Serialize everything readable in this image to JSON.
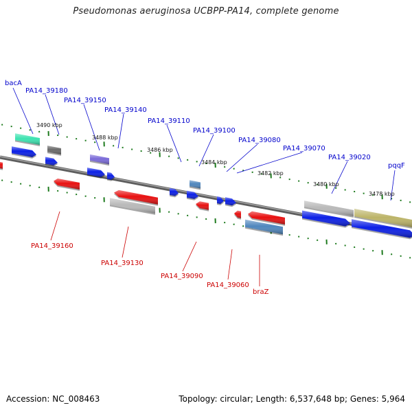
{
  "title": "Pseudomonas aeruginosa UCBPP-PA14, complete genome",
  "accession": "Accession: NC_008463",
  "summary": "Topology: circular; Length: 6,537,648 bp; Genes: 5,964",
  "colors": {
    "backbone": "#7d7d7d",
    "tick": "#1d7a1d",
    "label_forward": "#0000cc",
    "label_reverse": "#cc0000",
    "gene_blue": "#0b1fe6",
    "gene_red": "#e81010",
    "gene_gray": "#b9b9b9",
    "gene_teal": "#3ce3b0",
    "gene_darkgray": "#6a6a6a",
    "gene_purple": "#7a6ad8",
    "gene_steel": "#4f86bd",
    "gene_olive": "#bcb468"
  },
  "kbp_markers": [
    {
      "label": "3490 kbp"
    },
    {
      "label": "3488 kbp"
    },
    {
      "label": "3486 kbp"
    },
    {
      "label": "3484 kbp"
    },
    {
      "label": "3482 kbp"
    },
    {
      "label": "3480 kbp"
    },
    {
      "label": "3478 kbp"
    }
  ],
  "labels_top": [
    {
      "text": "bacA"
    },
    {
      "text": "PA14_39180"
    },
    {
      "text": "PA14_39150"
    },
    {
      "text": "PA14_39140"
    },
    {
      "text": "PA14_39110"
    },
    {
      "text": "PA14_39100"
    },
    {
      "text": "PA14_39080"
    },
    {
      "text": "PA14_39070"
    },
    {
      "text": "PA14_39020"
    },
    {
      "text": "pqqF"
    }
  ],
  "labels_bottom": [
    {
      "text": "PA14_39160"
    },
    {
      "text": "PA14_39130"
    },
    {
      "text": "PA14_39090"
    },
    {
      "text": "PA14_39060"
    },
    {
      "text": "braZ"
    }
  ]
}
